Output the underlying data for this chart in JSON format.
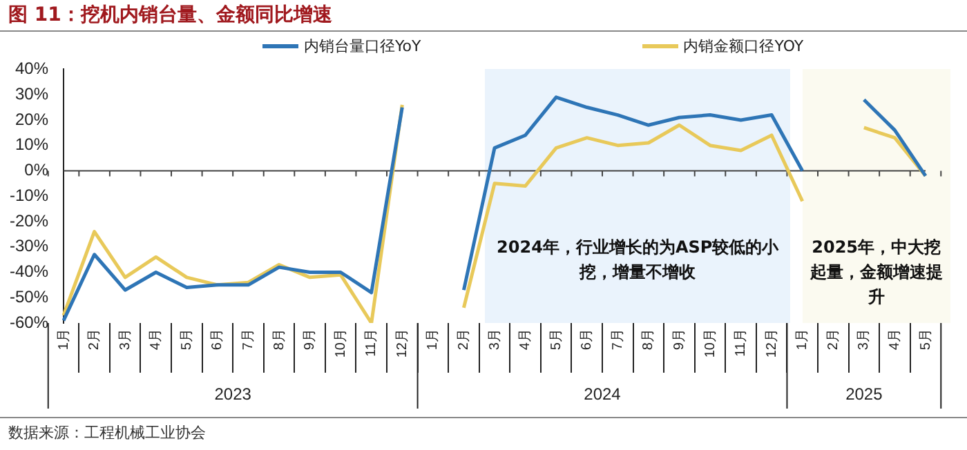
{
  "chart_data": {
    "type": "line",
    "title": "图 11：挖机内销台量、金额同比增速",
    "categories": [
      "1月",
      "2月",
      "3月",
      "4月",
      "5月",
      "6月",
      "7月",
      "8月",
      "9月",
      "10月",
      "11月",
      "12月",
      "1月",
      "2月",
      "3月",
      "4月",
      "5月",
      "6月",
      "7月",
      "8月",
      "9月",
      "10月",
      "11月",
      "12月",
      "1月",
      "2月",
      "3月",
      "4月",
      "5月"
    ],
    "series": [
      {
        "name": "内销台量口径YoY",
        "color": "#2e75b6",
        "values": [
          -59,
          -33,
          -47,
          -40,
          -46,
          -45,
          -45,
          -38,
          -40,
          -40,
          -48,
          25,
          null,
          -47,
          9,
          14,
          29,
          25,
          22,
          18,
          21,
          22,
          20,
          22,
          0,
          null,
          28,
          16,
          -2
        ]
      },
      {
        "name": "内销金额口径YOY",
        "color": "#e8c95a",
        "values": [
          -57,
          -24,
          -42,
          -34,
          -42,
          -45,
          -44,
          -37,
          -42,
          -41,
          -60,
          26,
          null,
          -54,
          -5,
          -6,
          9,
          13,
          10,
          11,
          18,
          10,
          8,
          14,
          -12,
          null,
          17,
          13,
          -2
        ]
      }
    ],
    "ylim": [
      -60,
      40
    ],
    "yticks": [
      {
        "value": -60,
        "label": "-60%"
      },
      {
        "value": -50,
        "label": "-50%"
      },
      {
        "value": -40,
        "label": "-40%"
      },
      {
        "value": -30,
        "label": "-30%"
      },
      {
        "value": -20,
        "label": "-20%"
      },
      {
        "value": -10,
        "label": "-10%"
      },
      {
        "value": 0,
        "label": "0%"
      },
      {
        "value": 10,
        "label": "10%"
      },
      {
        "value": 20,
        "label": "20%"
      },
      {
        "value": 30,
        "label": "30%"
      },
      {
        "value": 40,
        "label": "40%"
      }
    ],
    "annotations": [
      "2023",
      "2024",
      "2025",
      "2024年，行业增长的为ASP较低的小挖，增量不增收",
      "2025年，中大挖起量，金额增速提升",
      "数据来源：工程机械工业协会"
    ],
    "ref_lines": [
      {
        "axis": "y",
        "value": 0,
        "color": "#444444"
      }
    ],
    "legend": "top",
    "grid": false,
    "marker": "none",
    "line_style": "solid"
  }
}
